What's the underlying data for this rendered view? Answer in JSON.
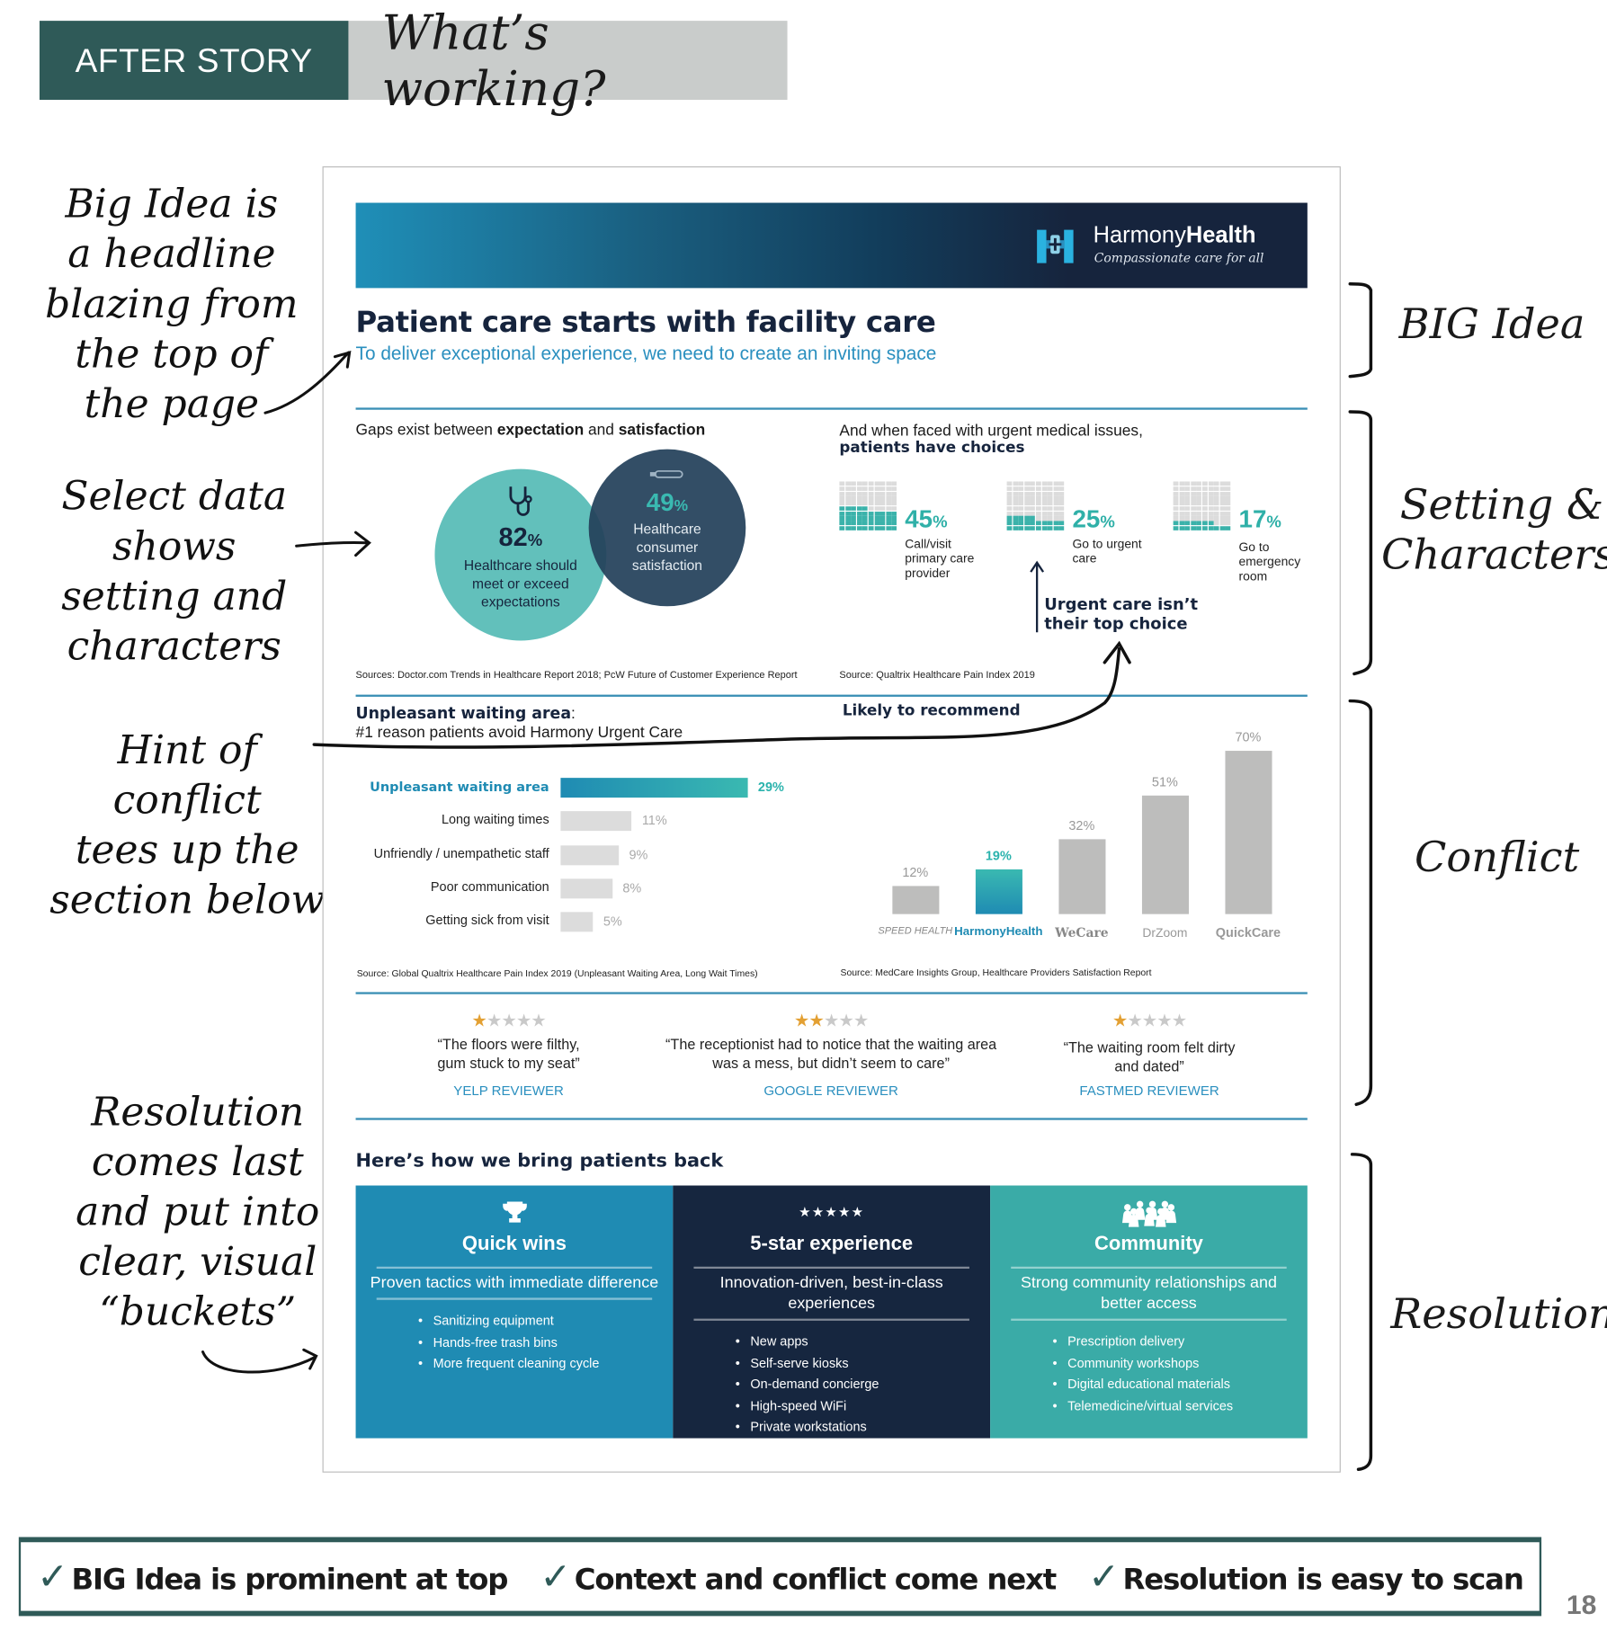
{
  "header": {
    "tag": "AFTER STORY",
    "question": "What’s working?"
  },
  "annotations_left": [
    [
      "Big Idea is",
      "a headline",
      "blazing from",
      "the top of",
      "the page"
    ],
    [
      "Select data",
      "shows",
      "setting and",
      "characters"
    ],
    [
      "Hint of",
      "conflict",
      "tees up the",
      "section below"
    ],
    [
      "Resolution",
      "comes last",
      "and put into",
      "clear, visual",
      "“buckets”"
    ]
  ],
  "annotations_right": {
    "big_idea": "BIG Idea",
    "setting_1": "Setting &",
    "setting_2": "Characters",
    "conflict": "Conflict",
    "resolution": "Resolution"
  },
  "doc": {
    "brand": {
      "name_light": "Harmony",
      "name_bold": "Health",
      "tagline": "Compassionate care for all"
    },
    "title": "Patient care starts with facility care",
    "subtitle": "To deliver exceptional experience, we need to create an inviting space",
    "gaps": {
      "heading_pre": "Gaps exist between ",
      "heading_b1": "expectation",
      "heading_mid": " and ",
      "heading_b2": "satisfaction",
      "circle1": {
        "value": "82",
        "unit": "%",
        "label": "Healthcare should meet or exceed expectations",
        "icon": "stethoscope-icon"
      },
      "circle2": {
        "value": "49",
        "unit": "%",
        "label": "Healthcare consumer satisfaction",
        "icon": "thermometer-icon"
      },
      "source": "Sources: Doctor.com Trends in Healthcare Report 2018; PcW Future of Customer Experience Report"
    },
    "choices": {
      "heading_1": "And when faced with urgent medical issues,",
      "heading_2": "patients have choices",
      "items": [
        {
          "value": 45,
          "label": "Call/visit primary care provider"
        },
        {
          "value": 25,
          "label": "Go to urgent care"
        },
        {
          "value": 17,
          "label": "Go to emergency room"
        }
      ],
      "callout": "Urgent care isn’t their top choice",
      "source": "Source: Qualtrix Healthcare Pain Index 2019"
    },
    "waiting": {
      "heading_b": "Unpleasant waiting area",
      "heading_colon": ":",
      "heading_2": "#1 reason patients avoid Harmony Urgent Care",
      "source": "Source: Global Qualtrix Healthcare Pain Index 2019 (Unpleasant Waiting Area, Long Wait Times)"
    },
    "recommend": {
      "heading": "Likely to recommend",
      "source": "Source:  MedCare Insights Group, Healthcare Providers Satisfaction Report"
    },
    "reviews": [
      {
        "stars": 1,
        "quote": "“The floors were filthy, gum stuck to my seat”",
        "reviewer": "YELP REVIEWER"
      },
      {
        "stars": 2,
        "quote": "“The receptionist had to notice that the waiting area was a mess, but didn’t seem to care”",
        "reviewer": "GOOGLE REVIEWER"
      },
      {
        "stars": 1,
        "quote": "“The waiting room felt dirty and dated”",
        "reviewer": "FASTMED REVIEWER"
      }
    ],
    "resolution": {
      "heading": "Here’s how we bring patients back",
      "buckets": [
        {
          "icon": "trophy-icon",
          "title": "Quick wins",
          "subtitle": "Proven tactics with immediate difference",
          "items": [
            "Sanitizing equipment",
            "Hands-free trash bins",
            "More frequent cleaning cycle"
          ],
          "color": "#1f8bb3"
        },
        {
          "icon": "five-stars-icon",
          "icon_text": "★★★★★",
          "title": "5-star experience",
          "subtitle": "Innovation-driven, best-in-class experiences",
          "items": [
            "New apps",
            "Self-serve kiosks",
            "On-demand concierge",
            "High-speed WiFi",
            "Private workstations"
          ],
          "color": "#16263f"
        },
        {
          "icon": "people-group-icon",
          "title": "Community",
          "subtitle": "Strong community relationships and better access",
          "items": [
            "Prescription delivery",
            "Community workshops",
            "Digital educational materials",
            "Telemedicine/virtual services"
          ],
          "color": "#3aaba7"
        }
      ]
    }
  },
  "chart_data": [
    {
      "type": "bar",
      "orientation": "horizontal",
      "categories": [
        "Unpleasant waiting area",
        "Long waiting times",
        "Unfriendly / unempathetic staff",
        "Poor communication",
        "Getting sick from visit"
      ],
      "values": [
        29,
        11,
        9,
        8,
        5
      ],
      "labels": [
        "29%",
        "11%",
        "9%",
        "8%",
        "5%"
      ],
      "highlight": "Unpleasant waiting area",
      "colors": {
        "highlight": "#2bb3ad",
        "base": "#dcdcdc"
      }
    },
    {
      "type": "bar",
      "categories": [
        "SPEED HEALTH",
        "HarmonyHealth",
        "WeCare",
        "DrZoom",
        "QuickCare"
      ],
      "values": [
        12,
        19,
        32,
        51,
        70
      ],
      "labels": [
        "12%",
        "19%",
        "32%",
        "51%",
        "70%"
      ],
      "highlight": "HarmonyHealth",
      "colors": {
        "highlight": "#2bb3ad",
        "base": "#bdbdbc"
      }
    }
  ],
  "footer": {
    "items": [
      "BIG Idea is prominent at top",
      "Context and conflict come next",
      "Resolution is easy to scan"
    ],
    "check": "✓",
    "page": "18"
  },
  "colors": {
    "accent_dark": "#2f5a58",
    "navy": "#16243d",
    "blue": "#1f8bb3",
    "teal": "#3aaba7",
    "link": "#2a8fbf"
  }
}
